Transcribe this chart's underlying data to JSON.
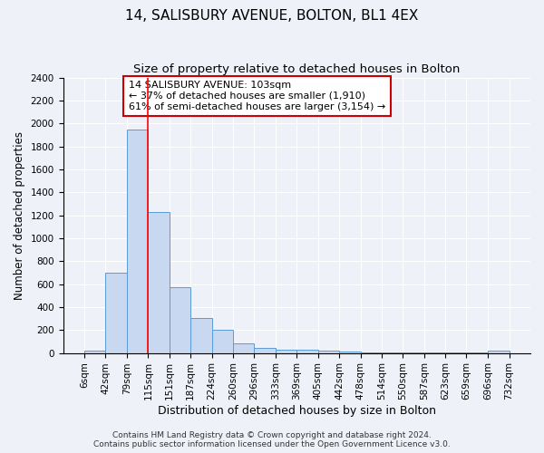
{
  "title1": "14, SALISBURY AVENUE, BOLTON, BL1 4EX",
  "title2": "Size of property relative to detached houses in Bolton",
  "xlabel": "Distribution of detached houses by size in Bolton",
  "ylabel": "Number of detached properties",
  "bin_edges": [
    6,
    42,
    79,
    115,
    151,
    187,
    224,
    260,
    296,
    333,
    369,
    405,
    442,
    478,
    514,
    550,
    587,
    623,
    659,
    696,
    732
  ],
  "bar_heights": [
    20,
    700,
    1950,
    1230,
    575,
    305,
    200,
    80,
    45,
    30,
    30,
    20,
    15,
    5,
    5,
    5,
    5,
    5,
    5,
    18
  ],
  "bar_color": "#c8d8f0",
  "bar_edge_color": "#5b9bd5",
  "bg_color": "#eef2f8",
  "red_line_x": 115,
  "annotation_text": "14 SALISBURY AVENUE: 103sqm\n← 37% of detached houses are smaller (1,910)\n61% of semi-detached houses are larger (3,154) →",
  "annotation_box_color": "#ffffff",
  "annotation_box_edge": "#cc0000",
  "ylim": [
    0,
    2400
  ],
  "yticks": [
    0,
    200,
    400,
    600,
    800,
    1000,
    1200,
    1400,
    1600,
    1800,
    2000,
    2200,
    2400
  ],
  "footer": "Contains HM Land Registry data © Crown copyright and database right 2024.\nContains public sector information licensed under the Open Government Licence v3.0.",
  "title1_fontsize": 11,
  "title2_fontsize": 9.5,
  "xlabel_fontsize": 9,
  "ylabel_fontsize": 8.5,
  "tick_fontsize": 7.5,
  "annotation_fontsize": 8,
  "footer_fontsize": 6.5
}
